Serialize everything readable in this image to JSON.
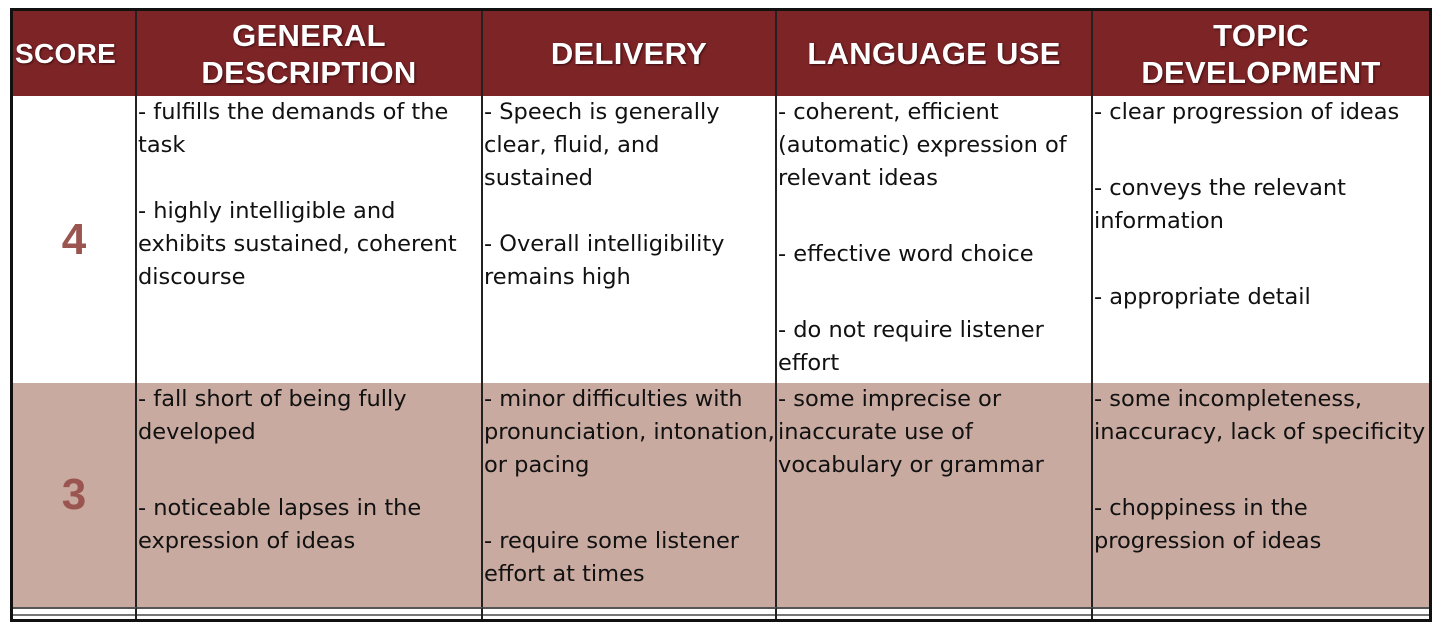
{
  "headers": {
    "score": "SCORE",
    "general": [
      "GENERAL",
      "DESCRIPTION"
    ],
    "delivery": "DELIVERY",
    "language": "LANGUAGE USE",
    "topic": [
      "TOPIC",
      "DEVELOPMENT"
    ]
  },
  "colors": {
    "header_bg": "#7d2427",
    "row3_bg": "#c9aaa0",
    "score_text": "#9b5550"
  },
  "rows": [
    {
      "score": "4",
      "general": [
        "- fulfills the demands of the task",
        "- highly intelligible and exhibits sustained, coherent discourse"
      ],
      "delivery": [
        "- Speech is generally clear, fluid, and sustained",
        "- Overall intelligibility remains high"
      ],
      "language": [
        "- coherent, efficient (automatic) expression of relevant ideas",
        "- effective word choice",
        "- do not require listener effort"
      ],
      "topic": [
        "- clear progression of ideas",
        "- conveys the relevant information",
        "- appropriate detail"
      ]
    },
    {
      "score": "3",
      "general": [
        "- fall short of being fully developed",
        "- noticeable lapses in the expression of ideas"
      ],
      "delivery": [
        "- minor difficulties with pronunciation, intonation, or pacing",
        "- require some listener effort at times"
      ],
      "language": [
        "- some imprecise or inaccurate use of vocabulary or grammar"
      ],
      "topic": [
        "- some incompleteness, inaccuracy, lack of specificity",
        "- choppiness in the progression of ideas"
      ]
    }
  ]
}
